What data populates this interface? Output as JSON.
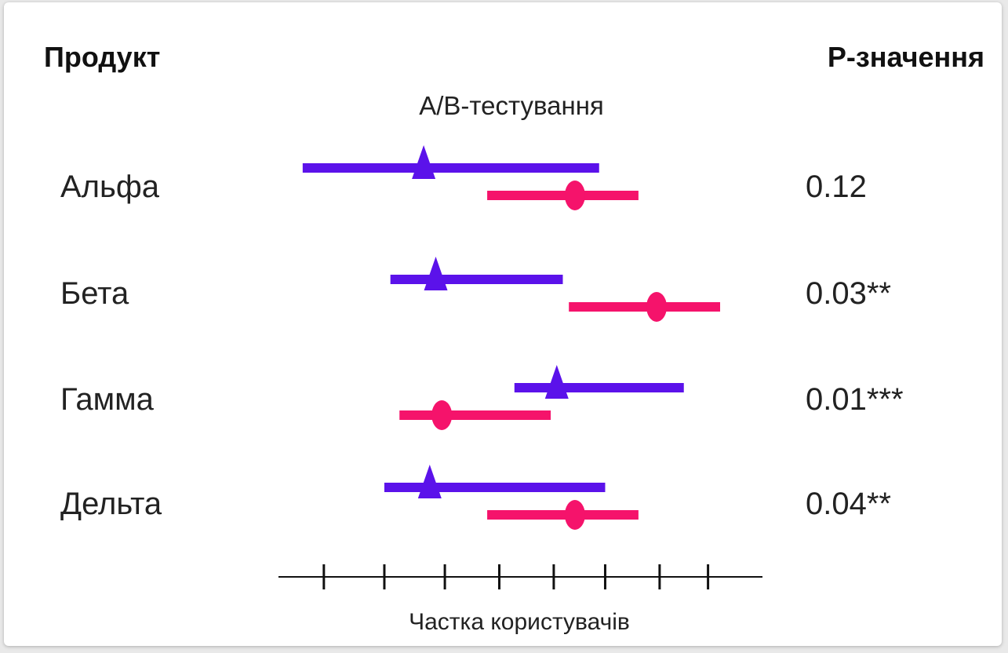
{
  "headers": {
    "product": "Продукт",
    "pvalue": "P-значення"
  },
  "subtitle": "A/B-тестування",
  "xlabel": "Частка користувачів",
  "rows": [
    {
      "label": "Альфа",
      "pvalue": "0.12"
    },
    {
      "label": "Бета",
      "pvalue": "0.03**"
    },
    {
      "label": "Гамма",
      "pvalue": "0.01***"
    },
    {
      "label": "Дельта",
      "pvalue": "0.04**"
    }
  ],
  "colors": {
    "triangle_series": "#5b12ea",
    "circle_series": "#f5136b",
    "axis": "#111111"
  },
  "chart_data": {
    "type": "forest",
    "title": "A/B-тестування",
    "xlabel": "Частка користувачів",
    "xlim": [
      0,
      8
    ],
    "x_tick_positions": [
      0.75,
      1.75,
      2.75,
      3.65,
      4.55,
      5.4,
      6.3,
      7.1
    ],
    "x_tick_labels": [],
    "categories": [
      "Альфа",
      "Бета",
      "Гамма",
      "Дельта"
    ],
    "series": [
      {
        "marker": "triangle",
        "points": [
          {
            "low": 0.4,
            "est": 2.4,
            "high": 5.3
          },
          {
            "low": 1.85,
            "est": 2.6,
            "high": 4.7
          },
          {
            "low": 3.9,
            "est": 4.6,
            "high": 6.7
          },
          {
            "low": 1.75,
            "est": 2.5,
            "high": 5.4
          }
        ]
      },
      {
        "marker": "circle",
        "points": [
          {
            "low": 3.45,
            "est": 4.9,
            "high": 5.95
          },
          {
            "low": 4.8,
            "est": 6.25,
            "high": 7.3
          },
          {
            "low": 2.0,
            "est": 2.7,
            "high": 4.5
          },
          {
            "low": 3.45,
            "est": 4.9,
            "high": 5.95
          }
        ]
      }
    ],
    "p_values": [
      "0.12",
      "0.03**",
      "0.01***",
      "0.04**"
    ]
  }
}
